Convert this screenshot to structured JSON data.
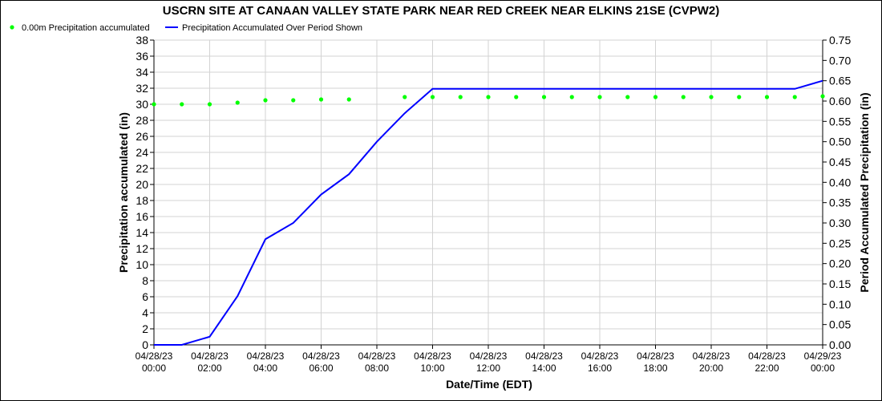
{
  "chart_data": {
    "type": "line",
    "title": "USCRN SITE AT CANAAN VALLEY STATE PARK NEAR RED CREEK NEAR ELKINS 21SE (CVPW2)",
    "xlabel": "Date/Time (EDT)",
    "ylabel_left": "Precipitation accumulated (in)",
    "ylabel_right": "Period Accumulated Precipitation (in)",
    "ylim_left": [
      0,
      38
    ],
    "ylim_right": [
      0,
      0.75
    ],
    "grid": true,
    "legend_placement": "top-left",
    "x_tick_labels": [
      {
        "date": "04/28/23",
        "time": "00:00"
      },
      {
        "date": "04/28/23",
        "time": "02:00"
      },
      {
        "date": "04/28/23",
        "time": "04:00"
      },
      {
        "date": "04/28/23",
        "time": "06:00"
      },
      {
        "date": "04/28/23",
        "time": "08:00"
      },
      {
        "date": "04/28/23",
        "time": "10:00"
      },
      {
        "date": "04/28/23",
        "time": "12:00"
      },
      {
        "date": "04/28/23",
        "time": "14:00"
      },
      {
        "date": "04/28/23",
        "time": "16:00"
      },
      {
        "date": "04/28/23",
        "time": "18:00"
      },
      {
        "date": "04/28/23",
        "time": "20:00"
      },
      {
        "date": "04/28/23",
        "time": "22:00"
      },
      {
        "date": "04/29/23",
        "time": "00:00"
      }
    ],
    "left_ticks": [
      "0",
      "2",
      "4",
      "6",
      "8",
      "10",
      "12",
      "14",
      "16",
      "18",
      "20",
      "22",
      "24",
      "26",
      "28",
      "30",
      "32",
      "34",
      "36",
      "38"
    ],
    "right_ticks": [
      "0.00",
      "0.05",
      "0.10",
      "0.15",
      "0.20",
      "0.25",
      "0.30",
      "0.35",
      "0.40",
      "0.45",
      "0.50",
      "0.55",
      "0.60",
      "0.65",
      "0.70",
      "0.75"
    ],
    "x_hours": [
      0,
      1,
      2,
      3,
      4,
      5,
      6,
      7,
      8,
      9,
      10,
      11,
      12,
      13,
      14,
      15,
      16,
      17,
      18,
      19,
      20,
      21,
      22,
      23,
      24
    ],
    "series": [
      {
        "name": "0.00m Precipitation accumulated",
        "axis": "left",
        "style": "markers",
        "color": "#00ff00",
        "values": [
          30.0,
          30.0,
          30.0,
          30.2,
          30.5,
          30.5,
          30.6,
          30.6,
          null,
          30.9,
          30.9,
          30.9,
          30.9,
          30.9,
          30.9,
          30.9,
          30.9,
          30.9,
          30.9,
          30.9,
          30.9,
          30.9,
          30.9,
          30.9,
          31.0
        ]
      },
      {
        "name": "Precipitation Accumulated Over Period Shown",
        "axis": "right",
        "style": "line",
        "color": "#0000ff",
        "values": [
          0.0,
          0.0,
          0.02,
          0.12,
          0.26,
          0.3,
          0.37,
          0.42,
          0.5,
          0.57,
          0.63,
          0.63,
          0.63,
          0.63,
          0.63,
          0.63,
          0.63,
          0.63,
          0.63,
          0.63,
          0.63,
          0.63,
          0.63,
          0.63,
          0.65
        ]
      }
    ]
  }
}
